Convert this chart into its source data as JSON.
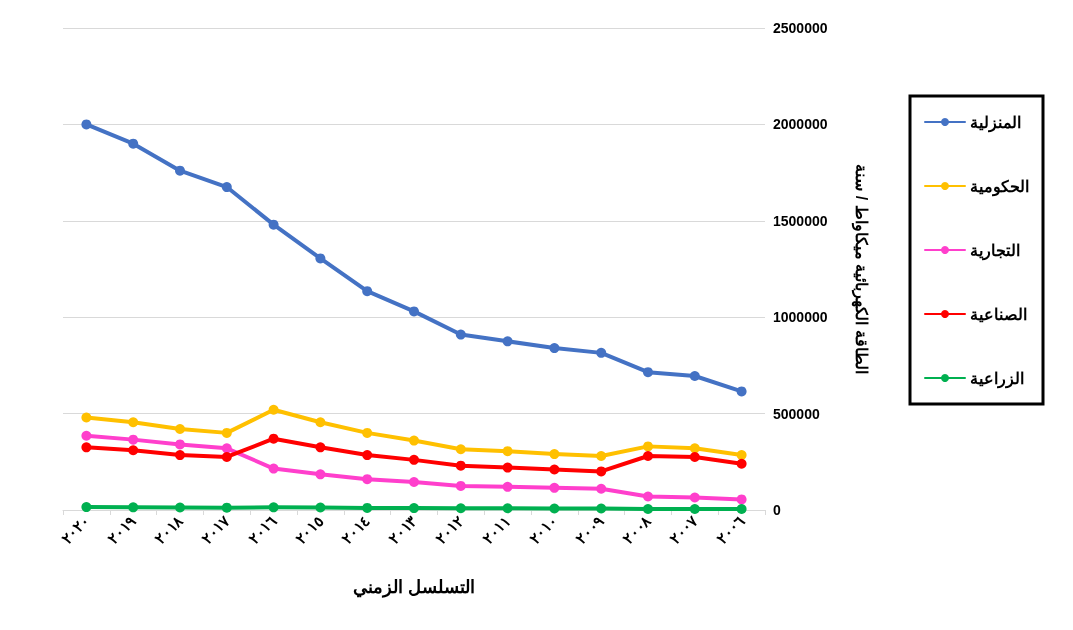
{
  "chart_data": {
    "type": "line",
    "xlabel": "التسلسل الزمني",
    "ylabel": "الطاقة الكهربائية ميكاواط / سنة",
    "categories": [
      "٢٠٢٠",
      "٢٠١٩",
      "٢٠١٨",
      "٢٠١٧",
      "٢٠١٦",
      "٢٠١٥",
      "٢٠١٤",
      "٢٠١٣",
      "٢٠١٢",
      "٢٠١١",
      "٢٠١٠",
      "٢٠٠٩",
      "٢٠٠٨",
      "٢٠٠٧",
      "٢٠٠٦"
    ],
    "series": [
      {
        "name": "المنزلية",
        "color": "#4472c4",
        "values": [
          2000000,
          1900000,
          1760000,
          1675000,
          1480000,
          1305000,
          1135000,
          1030000,
          910000,
          875000,
          840000,
          815000,
          715000,
          695000,
          615000
        ]
      },
      {
        "name": "الحكومية",
        "color": "#ffc000",
        "values": [
          480000,
          455000,
          420000,
          400000,
          520000,
          455000,
          400000,
          360000,
          315000,
          305000,
          290000,
          280000,
          330000,
          320000,
          285000
        ]
      },
      {
        "name": "التجارية",
        "color": "#ff3fcc",
        "values": [
          385000,
          365000,
          340000,
          320000,
          215000,
          185000,
          160000,
          145000,
          125000,
          120000,
          115000,
          110000,
          70000,
          65000,
          55000
        ]
      },
      {
        "name": "الصناعية",
        "color": "#ff0000",
        "values": [
          325000,
          310000,
          285000,
          275000,
          370000,
          325000,
          285000,
          260000,
          230000,
          220000,
          210000,
          200000,
          280000,
          275000,
          240000
        ]
      },
      {
        "name": "الزراعية",
        "color": "#00b050",
        "values": [
          15000,
          14000,
          13000,
          12000,
          14000,
          13000,
          11000,
          10000,
          9000,
          9000,
          8000,
          8000,
          5000,
          5000,
          5000
        ]
      }
    ],
    "ylim": [
      0,
      2500000
    ],
    "yticks": [
      0,
      500000,
      1000000,
      1500000,
      2000000,
      2500000
    ],
    "grid": "y",
    "legend": "right",
    "marker": "circle",
    "line_style": "solid"
  }
}
